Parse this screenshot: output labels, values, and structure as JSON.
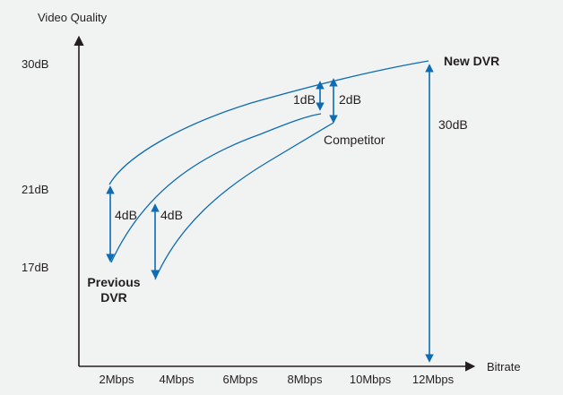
{
  "chart_data": {
    "type": "line",
    "ylabel": "Video Quality",
    "xlabel": "Bitrate",
    "x_categories": [
      "2Mbps",
      "4Mbps",
      "6Mbps",
      "8Mbps",
      "10Mbps",
      "12Mbps"
    ],
    "y_ticks": [
      "30dB",
      "21dB",
      "17dB"
    ],
    "series": [
      {
        "name": "New DVR",
        "points": [
          [
            2,
            21
          ],
          [
            3,
            24.4
          ],
          [
            4,
            25.9
          ],
          [
            6,
            27.4
          ],
          [
            8,
            28.5
          ],
          [
            10,
            29.3
          ],
          [
            12,
            30
          ]
        ]
      },
      {
        "name": "Competitor",
        "points": [
          [
            2,
            17
          ],
          [
            3,
            19.5
          ],
          [
            4,
            21.2
          ],
          [
            6,
            23.6
          ],
          [
            8,
            25.4
          ],
          [
            9,
            27.0
          ]
        ]
      },
      {
        "name": "Previous DVR",
        "points": [
          [
            3.5,
            17.0
          ],
          [
            4.5,
            19.7
          ],
          [
            6,
            22.0
          ],
          [
            7,
            23.3
          ],
          [
            8,
            24.5
          ],
          [
            9,
            25.5
          ]
        ]
      }
    ],
    "annotations": [
      {
        "text": "4dB",
        "from": [
          2,
          17
        ],
        "to": [
          2,
          21
        ]
      },
      {
        "text": "4dB",
        "from": [
          3.5,
          17
        ],
        "to": [
          3.5,
          21
        ]
      },
      {
        "text": "1dB",
        "from": [
          8.5,
          27
        ],
        "to": [
          8.5,
          28
        ]
      },
      {
        "text": "2dB",
        "from": [
          9,
          25.5
        ],
        "to": [
          9,
          27.5
        ]
      },
      {
        "text": "30dB",
        "from": [
          12,
          0
        ],
        "to": [
          12,
          30
        ]
      }
    ],
    "labels": {
      "new_dvr": "New DVR",
      "competitor": "Competitor",
      "previous_dvr_line1": "Previous",
      "previous_dvr_line2": "DVR"
    },
    "colors": {
      "line": "#0d6cb3",
      "axis": "#231f20",
      "background": "#f1f2f2"
    }
  }
}
